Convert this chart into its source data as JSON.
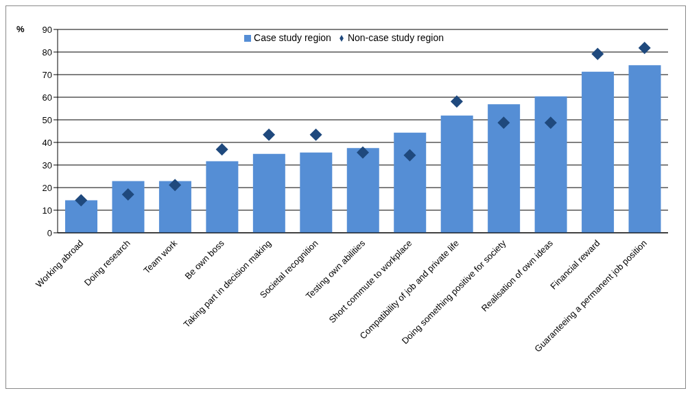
{
  "chart_data": {
    "type": "bar",
    "ylabel": "%",
    "categories": [
      "Working abroad",
      "Doing research",
      "Team work",
      "Be own boss",
      "Taking part in decision making",
      "Societal recognition",
      "Testing own abilities",
      "Short commute to workplace",
      "Compatibility of job and private life",
      "Doing something positive for society",
      "Realisation of own ideas",
      "Financial reward",
      "Guaranteeing a permanent job position"
    ],
    "series": [
      {
        "name": "Case study region",
        "color": "#558ed5",
        "values": [
          14.4,
          22.9,
          22.9,
          31.7,
          34.9,
          35.5,
          37.5,
          44.3,
          51.9,
          56.9,
          60.4,
          71.3,
          74.2
        ]
      },
      {
        "name": "Non-case study region",
        "type": "scatter",
        "marker": "diamond",
        "color": "#1f497d",
        "values": [
          14.4,
          17.0,
          21.1,
          36.9,
          43.4,
          43.4,
          35.5,
          34.3,
          58.1,
          48.7,
          48.7,
          79.2,
          81.8
        ]
      }
    ],
    "ylim": [
      0,
      90
    ],
    "yticks": [
      0,
      10,
      20,
      30,
      40,
      50,
      60,
      70,
      80,
      90
    ],
    "grid": "y",
    "legend": "top"
  }
}
